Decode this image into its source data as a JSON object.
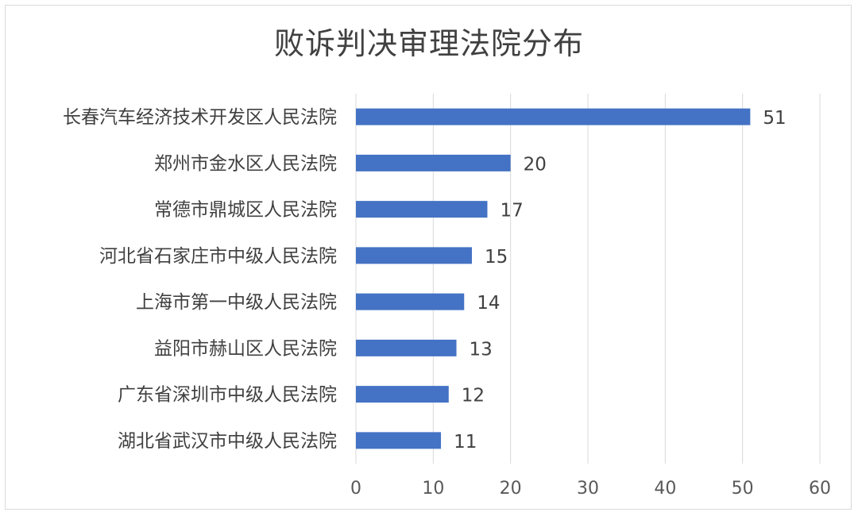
{
  "chart_data": {
    "type": "bar",
    "orientation": "horizontal",
    "title": "败诉判决审理法院分布",
    "categories": [
      "长春汽车经济技术开发区人民法院",
      "郑州市金水区人民法院",
      "常德市鼎城区人民法院",
      "河北省石家庄市中级人民法院",
      "上海市第一中级人民法院",
      "益阳市赫山区人民法院",
      "广东省深圳市中级人民法院",
      "湖北省武汉市中级人民法院"
    ],
    "values": [
      51,
      20,
      17,
      15,
      14,
      13,
      12,
      11
    ],
    "xlim": [
      0,
      60
    ],
    "xticks": [
      0,
      10,
      20,
      30,
      40,
      50,
      60
    ],
    "grid": "vertical",
    "bar_color": "#4472c4",
    "xlabel": "",
    "ylabel": ""
  }
}
